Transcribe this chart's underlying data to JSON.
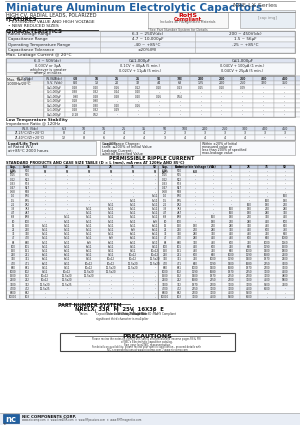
{
  "title": "Miniature Aluminum Electrolytic Capacitors",
  "series": "NRE-LX Series",
  "subtitle1": "HIGH CV, RADIAL LEADS, POLARIZED",
  "bg_color": "#ffffff",
  "header_blue": "#2060a0",
  "text_dark": "#111111"
}
